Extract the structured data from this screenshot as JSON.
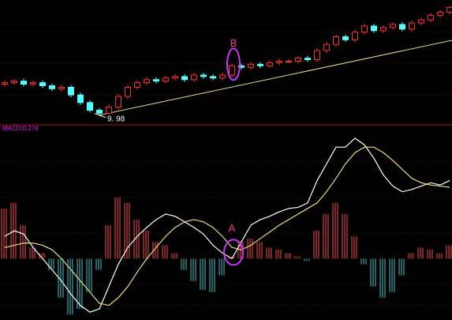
{
  "chart_data": [
    {
      "type": "candlestick",
      "up_color": "#ff3232",
      "down_color": "#54ffff",
      "trend_color": "#e8e07a",
      "ylim": [
        9.5,
        17.5
      ],
      "open": [
        12.0,
        12.1,
        12.2,
        12.0,
        12.1,
        11.9,
        11.7,
        11.8,
        11.3,
        10.8,
        10.3,
        10.1,
        10.5,
        11.2,
        11.8,
        12.1,
        12.3,
        12.2,
        12.4,
        12.5,
        12.3,
        12.6,
        12.5,
        12.4,
        12.6,
        13.2,
        13.1,
        13.3,
        13.2,
        13.4,
        13.5,
        13.5,
        13.7,
        13.6,
        14.2,
        14.6,
        15.1,
        14.9,
        15.4,
        15.8,
        15.5,
        15.7,
        15.9,
        15.6,
        16.0,
        16.2,
        16.5,
        16.7
      ],
      "close": [
        12.1,
        12.2,
        12.0,
        12.1,
        11.9,
        11.7,
        11.8,
        11.3,
        10.8,
        10.3,
        10.1,
        10.5,
        11.2,
        11.8,
        12.1,
        12.3,
        12.2,
        12.4,
        12.5,
        12.3,
        12.6,
        12.5,
        12.4,
        12.6,
        13.2,
        13.1,
        13.3,
        13.2,
        13.4,
        13.5,
        13.5,
        13.7,
        13.6,
        14.2,
        14.6,
        15.1,
        14.9,
        15.4,
        15.8,
        15.5,
        15.7,
        15.9,
        15.6,
        16.0,
        16.2,
        16.5,
        16.7,
        17.0
      ],
      "high": [
        12.25,
        12.35,
        12.35,
        12.25,
        12.25,
        12.05,
        11.95,
        11.95,
        11.45,
        10.95,
        10.45,
        10.65,
        11.35,
        11.95,
        12.25,
        12.45,
        12.45,
        12.55,
        12.65,
        12.65,
        12.75,
        12.75,
        12.65,
        12.75,
        13.35,
        13.35,
        13.45,
        13.45,
        13.55,
        13.65,
        13.65,
        13.85,
        13.85,
        14.35,
        14.75,
        15.25,
        15.25,
        15.55,
        15.95,
        15.95,
        15.85,
        16.05,
        16.05,
        16.15,
        16.35,
        16.65,
        16.85,
        17.15
      ],
      "low": [
        11.85,
        11.95,
        11.85,
        11.85,
        11.75,
        11.55,
        11.55,
        11.15,
        10.65,
        10.15,
        9.98,
        10.0,
        10.35,
        11.05,
        11.65,
        11.95,
        12.05,
        12.05,
        12.25,
        12.15,
        12.15,
        12.35,
        12.25,
        12.25,
        12.45,
        12.95,
        12.95,
        13.05,
        13.05,
        13.25,
        13.35,
        13.35,
        13.45,
        13.45,
        14.05,
        14.45,
        14.75,
        14.75,
        15.25,
        15.35,
        15.35,
        15.55,
        15.45,
        15.45,
        15.85,
        16.05,
        16.35,
        16.55
      ],
      "low_label": {
        "index": 10,
        "text": "9. 98"
      },
      "trendline": {
        "x": [
          10,
          47.5
        ],
        "y": [
          9.98,
          14.9
        ]
      },
      "annotation": {
        "text": "B",
        "index": 24,
        "color": "#ff3399",
        "ellipse_color": "#cc33ff"
      }
    },
    {
      "type": "macd",
      "label": "MACD:0.274",
      "label_color": "#ff00ff",
      "ylim": [
        -0.55,
        1.15
      ],
      "hist_up_color": "#ff4a4a",
      "hist_down_color": "#3fc6cc",
      "histogram": [
        0.45,
        0.5,
        0.3,
        0.1,
        0.05,
        -0.1,
        -0.35,
        -0.5,
        -0.45,
        -0.3,
        -0.1,
        0.3,
        0.55,
        0.5,
        0.35,
        0.25,
        0.15,
        0.12,
        0.05,
        -0.1,
        -0.2,
        -0.28,
        -0.3,
        -0.15,
        0.02,
        0.15,
        0.18,
        0.15,
        0.1,
        0.08,
        0.05,
        0.02,
        -0.02,
        0.25,
        0.4,
        0.5,
        0.4,
        0.2,
        -0.05,
        -0.25,
        -0.35,
        -0.3,
        -0.15,
        0.05,
        0.1,
        0.08,
        0.05,
        0.12
      ],
      "series": [
        {
          "color": "#ffffff",
          "values": [
            0.2,
            0.25,
            0.22,
            0.1,
            0.0,
            -0.1,
            -0.2,
            -0.32,
            -0.42,
            -0.48,
            -0.45,
            -0.25,
            -0.05,
            0.1,
            0.2,
            0.28,
            0.35,
            0.4,
            0.38,
            0.33,
            0.28,
            0.22,
            0.12,
            0.05,
            0.0,
            0.15,
            0.3,
            0.35,
            0.38,
            0.42,
            0.45,
            0.46,
            0.5,
            0.7,
            0.85,
            1.0,
            1.0,
            1.08,
            1.02,
            0.9,
            0.75,
            0.65,
            0.6,
            0.62,
            0.65,
            0.68,
            0.66,
            0.7
          ]
        },
        {
          "color": "#e8e07a",
          "values": [
            0.1,
            0.12,
            0.14,
            0.14,
            0.12,
            0.08,
            0.0,
            -0.1,
            -0.2,
            -0.3,
            -0.4,
            -0.42,
            -0.35,
            -0.25,
            -0.12,
            0.0,
            0.1,
            0.2,
            0.28,
            0.33,
            0.35,
            0.33,
            0.28,
            0.2,
            0.1,
            0.08,
            0.12,
            0.18,
            0.24,
            0.3,
            0.35,
            0.4,
            0.45,
            0.5,
            0.6,
            0.72,
            0.85,
            0.95,
            1.0,
            1.0,
            0.95,
            0.88,
            0.8,
            0.72,
            0.68,
            0.66,
            0.65,
            0.64
          ]
        }
      ],
      "annotation": {
        "text": "A",
        "index": 24,
        "color": "#ff3399",
        "ellipse_color": "#cc33ff"
      }
    }
  ]
}
